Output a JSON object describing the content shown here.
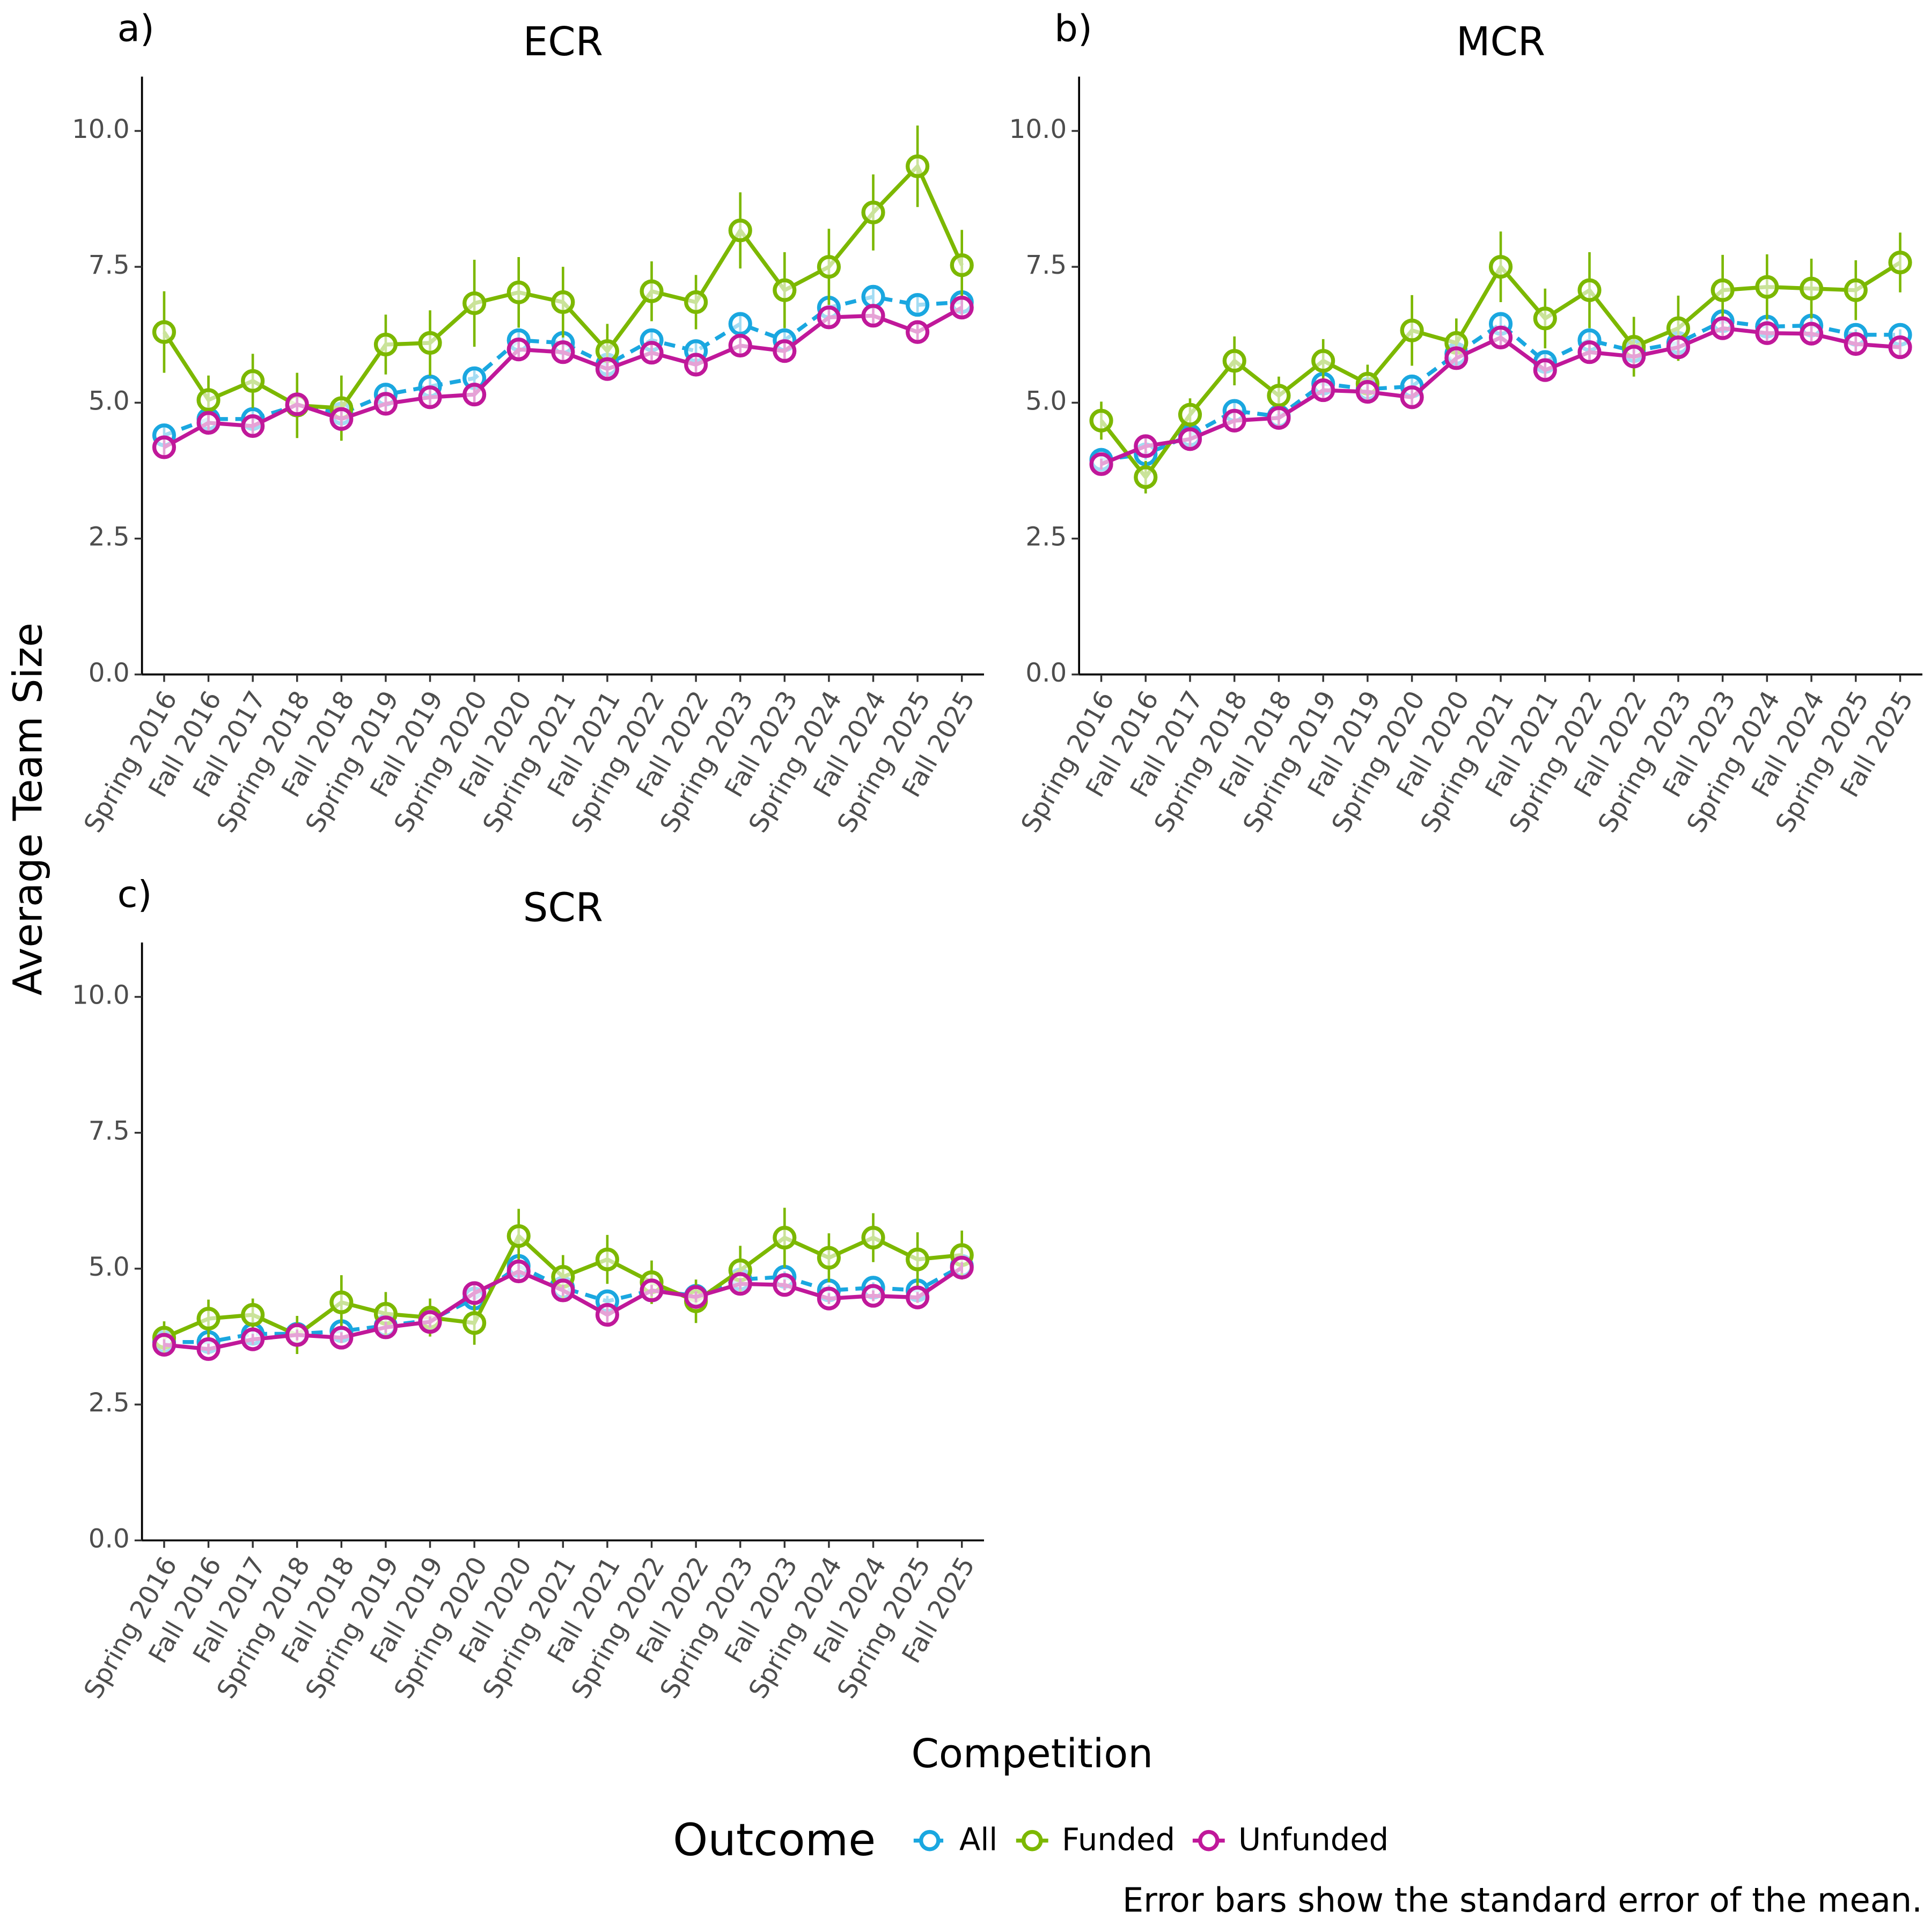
{
  "figure": {
    "ylabel": "Average Team Size",
    "xlabel": "Competition",
    "legend_title": "Outcome",
    "caption": "Error bars show the standard error of the mean."
  },
  "chart_data": [
    {
      "type": "line",
      "label": "a)",
      "title": "ECR",
      "categories": [
        "Spring 2016",
        "Fall 2016",
        "Fall 2017",
        "Spring 2018",
        "Fall 2018",
        "Spring 2019",
        "Fall 2019",
        "Spring 2020",
        "Fall 2020",
        "Spring 2021",
        "Fall 2021",
        "Spring 2022",
        "Fall 2022",
        "Spring 2023",
        "Fall 2023",
        "Spring 2024",
        "Fall 2024",
        "Spring 2025",
        "Fall 2025"
      ],
      "ylim": [
        0,
        11
      ],
      "yticks": [
        {
          "value": 0,
          "label": "0.0"
        },
        {
          "value": 2.5,
          "label": "2.5"
        },
        {
          "value": 5,
          "label": "5.0"
        },
        {
          "value": 7.5,
          "label": "7.5"
        },
        {
          "value": 10,
          "label": "10.0"
        }
      ],
      "series": [
        {
          "name": "All",
          "color": "#1aa7e0",
          "linestyle": "dashed",
          "values": [
            4.4,
            4.7,
            4.7,
            4.95,
            4.8,
            5.15,
            5.3,
            5.45,
            6.15,
            6.1,
            5.7,
            6.15,
            5.95,
            6.45,
            6.15,
            6.75,
            6.95,
            6.8,
            6.85
          ],
          "errors": [
            0.15,
            0.15,
            0.15,
            0.15,
            0.15,
            0.15,
            0.15,
            0.15,
            0.15,
            0.15,
            0.15,
            0.15,
            0.15,
            0.2,
            0.15,
            0.2,
            0.2,
            0.15,
            0.15
          ]
        },
        {
          "name": "Funded",
          "color": "#7cb800",
          "linestyle": "solid",
          "values": [
            6.3,
            5.05,
            5.4,
            4.95,
            4.9,
            6.07,
            6.1,
            6.83,
            7.03,
            6.85,
            5.95,
            7.05,
            6.85,
            8.17,
            7.07,
            7.5,
            8.5,
            9.35,
            7.53
          ],
          "errors": [
            0.75,
            0.45,
            0.5,
            0.6,
            0.6,
            0.55,
            0.6,
            0.8,
            0.65,
            0.65,
            0.5,
            0.55,
            0.5,
            0.7,
            0.7,
            0.7,
            0.7,
            0.75,
            0.65
          ]
        },
        {
          "name": "Unfunded",
          "color": "#c0189a",
          "linestyle": "solid",
          "values": [
            4.18,
            4.63,
            4.57,
            4.97,
            4.7,
            4.98,
            5.1,
            5.15,
            5.98,
            5.93,
            5.62,
            5.92,
            5.7,
            6.05,
            5.95,
            6.57,
            6.6,
            6.3,
            6.75
          ],
          "errors": [
            0.15,
            0.15,
            0.15,
            0.15,
            0.15,
            0.15,
            0.2,
            0.2,
            0.2,
            0.2,
            0.2,
            0.2,
            0.2,
            0.2,
            0.2,
            0.2,
            0.2,
            0.2,
            0.2
          ]
        }
      ]
    },
    {
      "type": "line",
      "label": "b)",
      "title": "MCR",
      "categories": [
        "Spring 2016",
        "Fall 2016",
        "Fall 2017",
        "Spring 2018",
        "Fall 2018",
        "Spring 2019",
        "Fall 2019",
        "Spring 2020",
        "Fall 2020",
        "Spring 2021",
        "Fall 2021",
        "Spring 2022",
        "Fall 2022",
        "Spring 2023",
        "Fall 2023",
        "Spring 2024",
        "Fall 2024",
        "Spring 2025",
        "Fall 2025"
      ],
      "ylim": [
        0,
        11
      ],
      "yticks": [
        {
          "value": 0,
          "label": "0.0"
        },
        {
          "value": 2.5,
          "label": "2.5"
        },
        {
          "value": 5,
          "label": "5.0"
        },
        {
          "value": 7.5,
          "label": "7.5"
        },
        {
          "value": 10,
          "label": "10.0"
        }
      ],
      "series": [
        {
          "name": "All",
          "color": "#1aa7e0",
          "linestyle": "dashed",
          "values": [
            3.95,
            4.05,
            4.4,
            4.85,
            4.75,
            5.35,
            5.25,
            5.3,
            5.9,
            6.45,
            5.75,
            6.15,
            5.95,
            6.1,
            6.5,
            6.4,
            6.42,
            6.25,
            6.25
          ],
          "errors": [
            0.1,
            0.1,
            0.1,
            0.15,
            0.1,
            0.15,
            0.1,
            0.15,
            0.15,
            0.15,
            0.15,
            0.15,
            0.15,
            0.15,
            0.15,
            0.15,
            0.15,
            0.1,
            0.1
          ]
        },
        {
          "name": "Funded",
          "color": "#7cb800",
          "linestyle": "solid",
          "values": [
            4.67,
            3.63,
            4.78,
            5.77,
            5.13,
            5.77,
            5.35,
            6.33,
            6.1,
            7.5,
            6.55,
            7.07,
            6.03,
            6.37,
            7.07,
            7.13,
            7.1,
            7.07,
            7.58
          ],
          "errors": [
            0.35,
            0.3,
            0.3,
            0.45,
            0.35,
            0.4,
            0.35,
            0.65,
            0.45,
            0.65,
            0.55,
            0.7,
            0.55,
            0.6,
            0.65,
            0.6,
            0.55,
            0.55,
            0.55
          ]
        },
        {
          "name": "Unfunded",
          "color": "#c0189a",
          "linestyle": "solid",
          "values": [
            3.87,
            4.2,
            4.33,
            4.67,
            4.72,
            5.23,
            5.2,
            5.1,
            5.82,
            6.2,
            5.6,
            5.93,
            5.85,
            6.02,
            6.37,
            6.28,
            6.27,
            6.08,
            6.02
          ],
          "errors": [
            0.1,
            0.15,
            0.15,
            0.15,
            0.15,
            0.15,
            0.15,
            0.15,
            0.2,
            0.2,
            0.2,
            0.15,
            0.15,
            0.15,
            0.2,
            0.15,
            0.15,
            0.15,
            0.15
          ]
        }
      ]
    },
    {
      "type": "line",
      "label": "c)",
      "title": "SCR",
      "categories": [
        "Spring 2016",
        "Fall 2016",
        "Fall 2017",
        "Spring 2018",
        "Fall 2018",
        "Spring 2019",
        "Fall 2019",
        "Spring 2020",
        "Fall 2020",
        "Spring 2021",
        "Fall 2021",
        "Spring 2022",
        "Fall 2022",
        "Spring 2023",
        "Fall 2023",
        "Spring 2024",
        "Fall 2024",
        "Spring 2025",
        "Fall 2025"
      ],
      "ylim": [
        0,
        11
      ],
      "yticks": [
        {
          "value": 0,
          "label": "0.0"
        },
        {
          "value": 2.5,
          "label": "2.5"
        },
        {
          "value": 5,
          "label": "5.0"
        },
        {
          "value": 7.5,
          "label": "7.5"
        },
        {
          "value": 10,
          "label": "10.0"
        }
      ],
      "series": [
        {
          "name": "All",
          "color": "#1aa7e0",
          "linestyle": "dashed",
          "values": [
            3.65,
            3.65,
            3.8,
            3.8,
            3.85,
            3.95,
            4.05,
            4.45,
            5.05,
            4.65,
            4.4,
            4.6,
            4.5,
            4.8,
            4.85,
            4.6,
            4.65,
            4.6,
            5.05
          ],
          "errors": [
            0.1,
            0.1,
            0.1,
            0.1,
            0.1,
            0.1,
            0.1,
            0.15,
            0.15,
            0.1,
            0.1,
            0.1,
            0.1,
            0.1,
            0.1,
            0.1,
            0.1,
            0.1,
            0.1
          ]
        },
        {
          "name": "Funded",
          "color": "#7cb800",
          "linestyle": "solid",
          "values": [
            3.73,
            4.08,
            4.15,
            3.78,
            4.38,
            4.17,
            4.1,
            4.0,
            5.6,
            4.85,
            5.17,
            4.75,
            4.4,
            4.97,
            5.57,
            5.2,
            5.57,
            5.17,
            5.25
          ],
          "errors": [
            0.3,
            0.35,
            0.3,
            0.35,
            0.5,
            0.4,
            0.35,
            0.4,
            0.5,
            0.4,
            0.45,
            0.4,
            0.4,
            0.45,
            0.55,
            0.45,
            0.45,
            0.5,
            0.45
          ]
        },
        {
          "name": "Unfunded",
          "color": "#c0189a",
          "linestyle": "solid",
          "values": [
            3.6,
            3.52,
            3.7,
            3.78,
            3.73,
            3.92,
            4.02,
            4.55,
            4.95,
            4.6,
            4.15,
            4.6,
            4.48,
            4.72,
            4.7,
            4.45,
            4.5,
            4.47,
            5.02
          ],
          "errors": [
            0.1,
            0.1,
            0.1,
            0.1,
            0.1,
            0.1,
            0.1,
            0.15,
            0.15,
            0.1,
            0.15,
            0.1,
            0.1,
            0.1,
            0.1,
            0.1,
            0.1,
            0.1,
            0.1
          ]
        }
      ]
    }
  ]
}
